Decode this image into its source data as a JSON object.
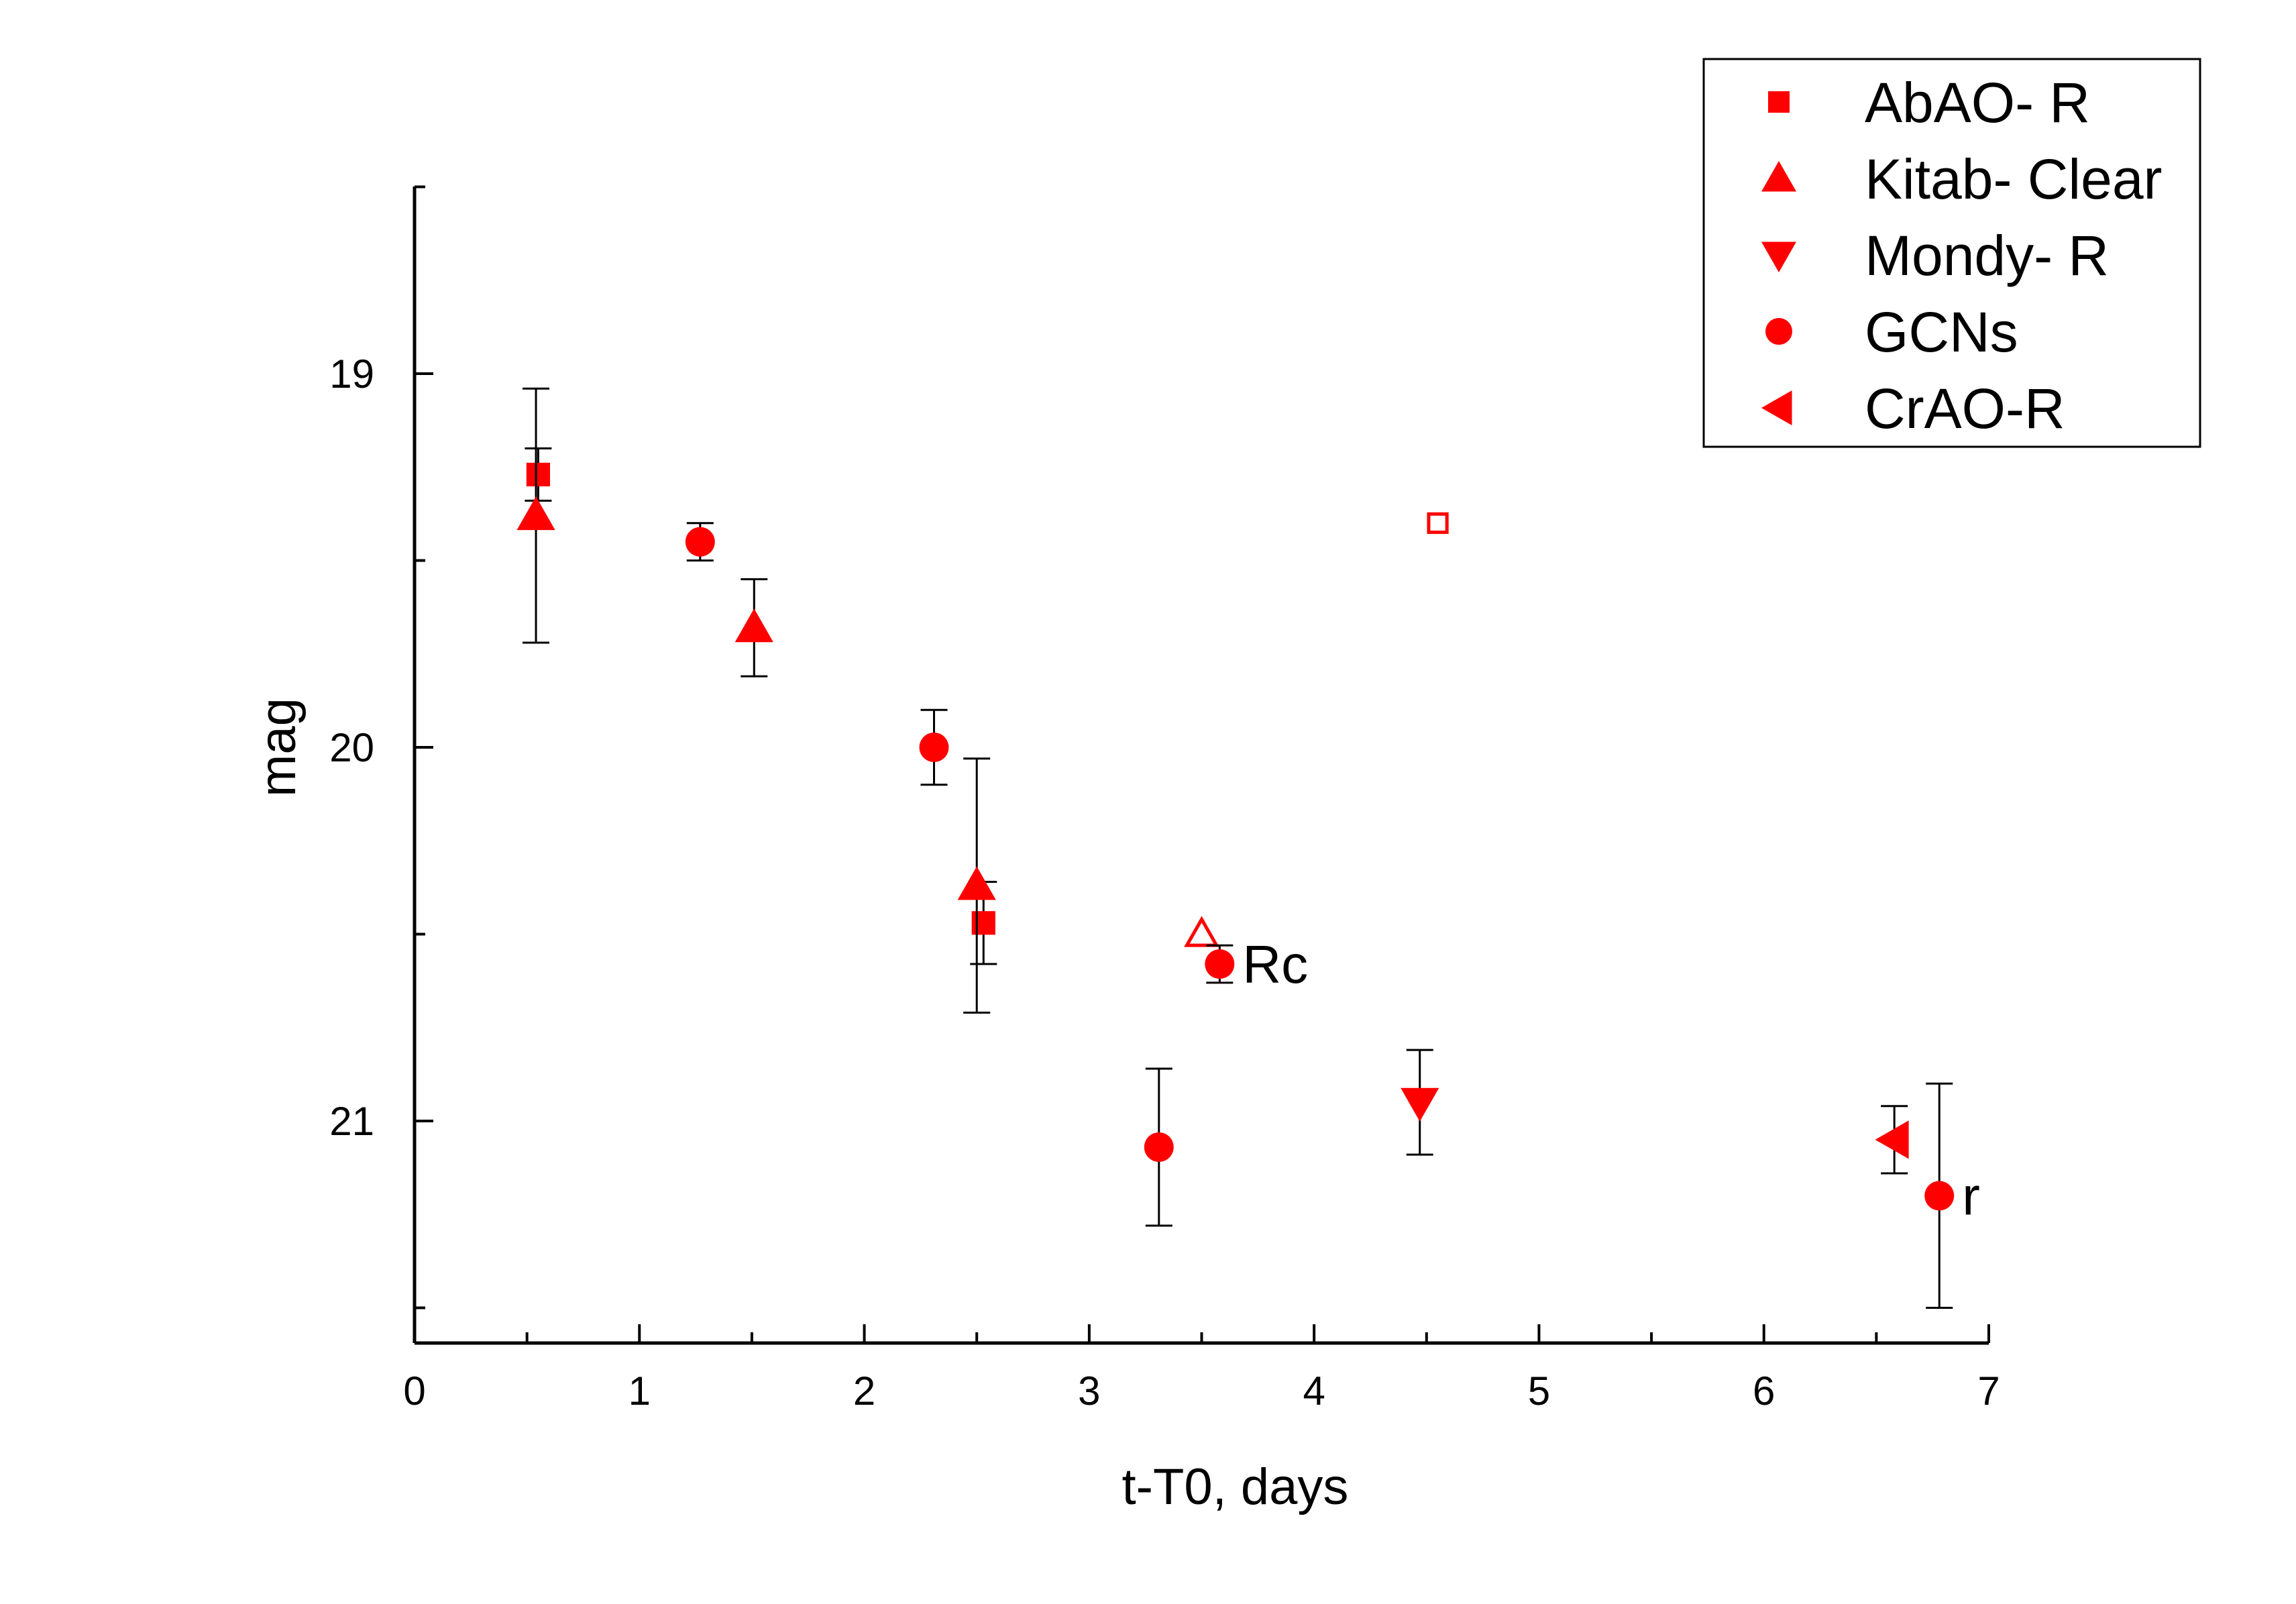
{
  "chart_data": {
    "type": "scatter",
    "xlabel": "t-T0, days",
    "ylabel": "mag",
    "xlim": [
      0,
      7
    ],
    "ylim": [
      21.5,
      18.5
    ],
    "y_inverted": true,
    "x_ticks": [
      "0",
      "1",
      "2",
      "3",
      "4",
      "5",
      "6",
      "7"
    ],
    "y_ticks": [
      "19",
      "20",
      "21"
    ],
    "legend_position": "top-right",
    "marker_color": "#ff0000",
    "series": [
      {
        "name": "AbAO- R",
        "marker": "square",
        "points": [
          {
            "x": 0.55,
            "y": 19.27,
            "err_lo": 0.07,
            "err_hi": 0.07
          },
          {
            "x": 2.53,
            "y": 20.47,
            "err_lo": 0.11,
            "err_hi": 0.11
          },
          {
            "x": 4.55,
            "y": 19.4,
            "hollow": true
          }
        ]
      },
      {
        "name": "Kitab- Clear",
        "marker": "triangle-up",
        "points": [
          {
            "x": 0.54,
            "y": 19.38,
            "err_lo": 0.34,
            "err_hi": 0.34
          },
          {
            "x": 1.51,
            "y": 19.68,
            "err_lo": 0.13,
            "err_hi": 0.13
          },
          {
            "x": 2.5,
            "y": 20.37,
            "err_lo": 0.34,
            "err_hi": 0.34
          },
          {
            "x": 3.5,
            "y": 20.5,
            "hollow": true
          }
        ]
      },
      {
        "name": "Mondy- R",
        "marker": "triangle-down",
        "points": [
          {
            "x": 4.47,
            "y": 20.95,
            "err_lo": 0.14,
            "err_hi": 0.14
          }
        ]
      },
      {
        "name": "GCNs",
        "marker": "circle",
        "points": [
          {
            "x": 1.27,
            "y": 19.45,
            "err_lo": 0.05,
            "err_hi": 0.05
          },
          {
            "x": 2.31,
            "y": 20.0,
            "err_lo": 0.1,
            "err_hi": 0.1
          },
          {
            "x": 3.31,
            "y": 21.07,
            "err_lo": 0.21,
            "err_hi": 0.21
          },
          {
            "x": 3.58,
            "y": 20.58,
            "err_lo": 0.05,
            "err_hi": 0.05,
            "label": "Rc"
          },
          {
            "x": 6.78,
            "y": 21.2,
            "err_lo": 0.3,
            "err_hi": 0.3,
            "label": "r"
          }
        ]
      },
      {
        "name": "CrAO-R",
        "marker": "triangle-left",
        "points": [
          {
            "x": 6.58,
            "y": 21.05,
            "err_lo": 0.09,
            "err_hi": 0.09
          }
        ]
      }
    ]
  }
}
